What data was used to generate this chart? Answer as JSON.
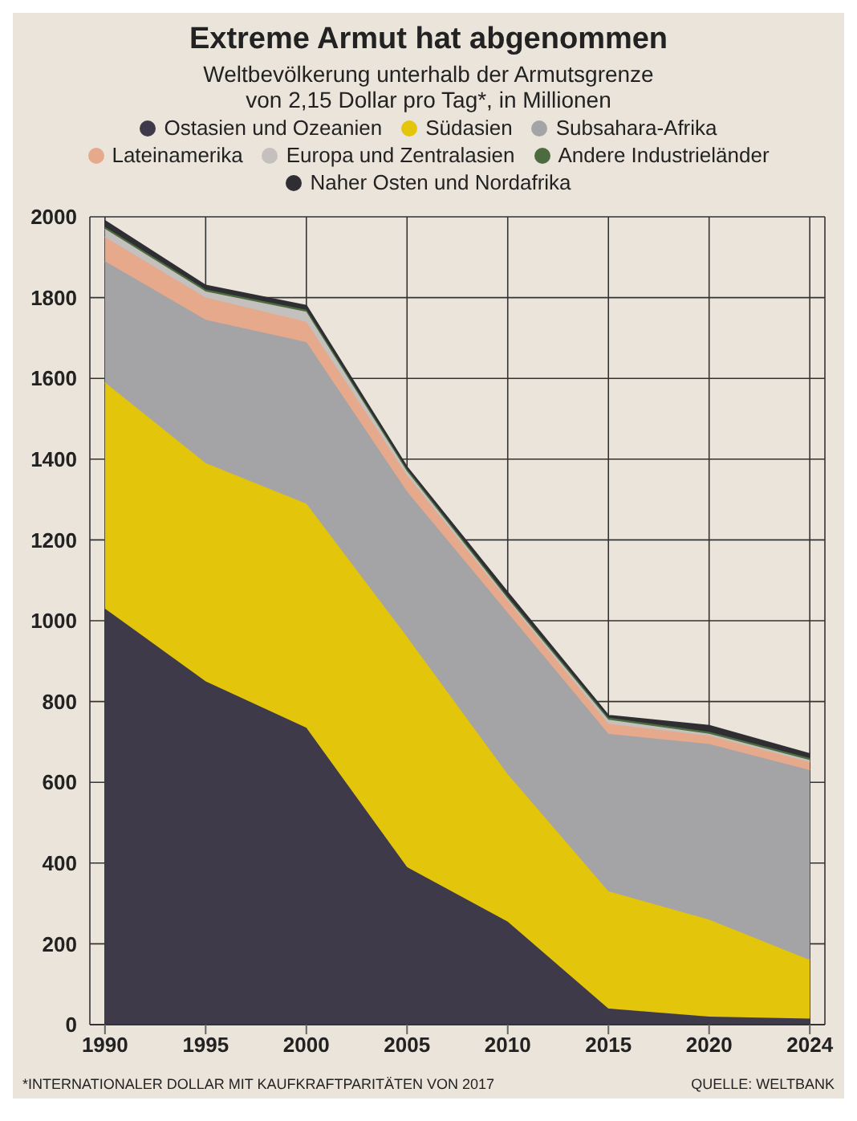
{
  "chart_data": {
    "type": "area",
    "title": "Extreme Armut hat abgenommen",
    "subtitle": "Weltbevölkerung unterhalb der Armutsgrenze\nvon 2,15 Dollar pro Tag*, in Millionen",
    "stacked": true,
    "categories": [
      "1990",
      "1995",
      "2000",
      "2005",
      "2010",
      "2015",
      "2020",
      "2024"
    ],
    "series": [
      {
        "name": "Ostasien und Ozeanien",
        "color": "#3f3a4a",
        "values": [
          1030,
          850,
          735,
          390,
          255,
          40,
          20,
          15
        ]
      },
      {
        "name": "Südasien",
        "color": "#e3c50c",
        "values": [
          560,
          540,
          555,
          570,
          365,
          290,
          240,
          145
        ]
      },
      {
        "name": "Subsahara-Afrika",
        "color": "#a4a4a6",
        "values": [
          300,
          355,
          400,
          360,
          400,
          390,
          435,
          470
        ]
      },
      {
        "name": "Lateinamerika",
        "color": "#e6a98c",
        "values": [
          60,
          55,
          50,
          40,
          30,
          25,
          20,
          20
        ]
      },
      {
        "name": "Europa und Zentralasien",
        "color": "#c3c0bd",
        "values": [
          20,
          15,
          25,
          10,
          5,
          10,
          5,
          5
        ]
      },
      {
        "name": "Andere Industrieländer",
        "color": "#4c6b3e",
        "values": [
          5,
          5,
          5,
          5,
          5,
          5,
          5,
          5
        ]
      },
      {
        "name": "Naher Osten und Nordafrika",
        "color": "#2e2e33",
        "values": [
          15,
          10,
          10,
          5,
          10,
          5,
          15,
          10
        ]
      }
    ],
    "ylim": [
      0,
      2000
    ],
    "yticks": [
      0,
      200,
      400,
      600,
      800,
      1000,
      1200,
      1400,
      1600,
      1800,
      2000
    ],
    "grid": true,
    "legend": "top",
    "marker": "none",
    "annotations": [
      "*INTERNATIONALER DOLLAR MIT KAUFKRAFTPARITÄTEN VON 2017",
      "QUELLE: WELTBANK"
    ]
  }
}
